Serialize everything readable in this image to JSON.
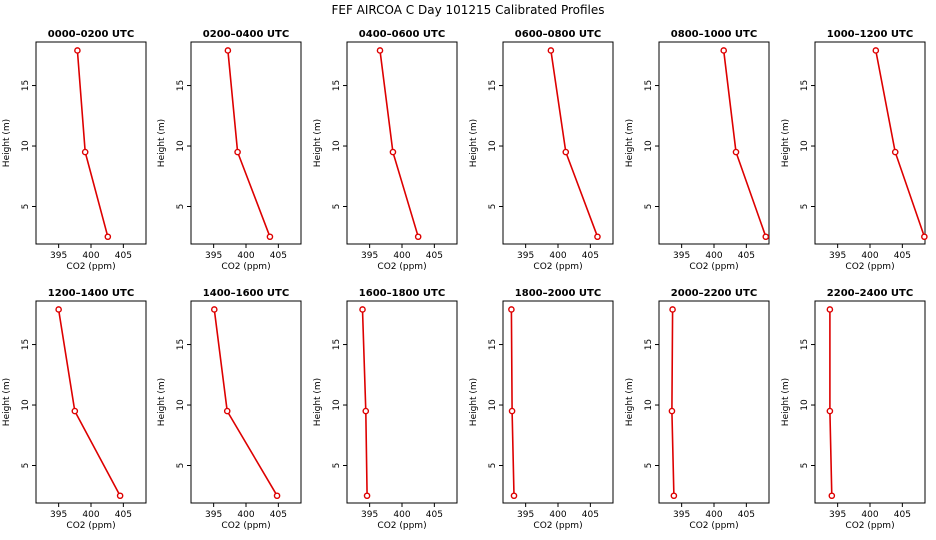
{
  "figure_title": "FEF AIRCOA C  Day 101215  Calibrated Profiles",
  "colors": {
    "profile": "#dd0000",
    "axis": "#000000",
    "background": "#ffffff"
  },
  "chart_data": [
    {
      "type": "line",
      "title": "0000–0200 UTC",
      "xlabel": "CO2 (ppm)",
      "ylabel": "Height (m)",
      "x": [
        402.6,
        399.1,
        397.9
      ],
      "y": [
        2.5,
        9.5,
        17.9
      ],
      "xlim": [
        391.5,
        408.5
      ],
      "ylim": [
        1.9,
        18.6
      ],
      "xticks": [
        395,
        400,
        405
      ],
      "xtick_labels": [
        "395",
        "400",
        "405"
      ],
      "yticks": [
        5,
        10,
        15
      ],
      "ytick_labels": [
        "5",
        "10",
        "15"
      ]
    },
    {
      "type": "line",
      "title": "0200–0400 UTC",
      "xlabel": "CO2 (ppm)",
      "ylabel": "Height (m)",
      "x": [
        403.7,
        398.7,
        397.2
      ],
      "y": [
        2.5,
        9.5,
        17.9
      ],
      "xlim": [
        391.5,
        408.5
      ],
      "ylim": [
        1.9,
        18.6
      ],
      "xticks": [
        395,
        400,
        405
      ],
      "xtick_labels": [
        "395",
        "400",
        "405"
      ],
      "yticks": [
        5,
        10,
        15
      ],
      "ytick_labels": [
        "5",
        "10",
        "15"
      ]
    },
    {
      "type": "line",
      "title": "0400–0600 UTC",
      "xlabel": "CO2 (ppm)",
      "ylabel": "Height (m)",
      "x": [
        402.5,
        398.6,
        396.6
      ],
      "y": [
        2.5,
        9.5,
        17.9
      ],
      "xlim": [
        391.5,
        408.5
      ],
      "ylim": [
        1.9,
        18.6
      ],
      "xticks": [
        395,
        400,
        405
      ],
      "xtick_labels": [
        "395",
        "400",
        "405"
      ],
      "yticks": [
        5,
        10,
        15
      ],
      "ytick_labels": [
        "5",
        "10",
        "15"
      ]
    },
    {
      "type": "line",
      "title": "0600–0800 UTC",
      "xlabel": "CO2 (ppm)",
      "ylabel": "Height (m)",
      "x": [
        406.1,
        401.2,
        398.9
      ],
      "y": [
        2.5,
        9.5,
        17.9
      ],
      "xlim": [
        391.5,
        408.5
      ],
      "ylim": [
        1.9,
        18.6
      ],
      "xticks": [
        395,
        400,
        405
      ],
      "xtick_labels": [
        "395",
        "400",
        "405"
      ],
      "yticks": [
        5,
        10,
        15
      ],
      "ytick_labels": [
        "5",
        "10",
        "15"
      ]
    },
    {
      "type": "line",
      "title": "0800–1000 UTC",
      "xlabel": "CO2 (ppm)",
      "ylabel": "Height (m)",
      "x": [
        408.0,
        403.4,
        401.5
      ],
      "y": [
        2.5,
        9.5,
        17.9
      ],
      "xlim": [
        391.5,
        408.5
      ],
      "ylim": [
        1.9,
        18.6
      ],
      "xticks": [
        395,
        400,
        405
      ],
      "xtick_labels": [
        "395",
        "400",
        "405"
      ],
      "yticks": [
        5,
        10,
        15
      ],
      "ytick_labels": [
        "5",
        "10",
        "15"
      ]
    },
    {
      "type": "line",
      "title": "1000–1200 UTC",
      "xlabel": "CO2 (ppm)",
      "ylabel": "Height (m)",
      "x": [
        408.4,
        403.9,
        400.9
      ],
      "y": [
        2.5,
        9.5,
        17.9
      ],
      "xlim": [
        391.5,
        408.5
      ],
      "ylim": [
        1.9,
        18.6
      ],
      "xticks": [
        395,
        400,
        405
      ],
      "xtick_labels": [
        "395",
        "400",
        "405"
      ],
      "yticks": [
        5,
        10,
        15
      ],
      "ytick_labels": [
        "5",
        "10",
        "15"
      ]
    },
    {
      "type": "line",
      "title": "1200–1400 UTC",
      "xlabel": "CO2 (ppm)",
      "ylabel": "Height (m)",
      "x": [
        404.5,
        397.5,
        395.0
      ],
      "y": [
        2.5,
        9.5,
        17.9
      ],
      "xlim": [
        391.5,
        408.5
      ],
      "ylim": [
        1.9,
        18.6
      ],
      "xticks": [
        395,
        400,
        405
      ],
      "xtick_labels": [
        "395",
        "400",
        "405"
      ],
      "yticks": [
        5,
        10,
        15
      ],
      "ytick_labels": [
        "5",
        "10",
        "15"
      ]
    },
    {
      "type": "line",
      "title": "1400–1600 UTC",
      "xlabel": "CO2 (ppm)",
      "ylabel": "Height (m)",
      "x": [
        404.8,
        397.1,
        395.1
      ],
      "y": [
        2.5,
        9.5,
        17.9
      ],
      "xlim": [
        391.5,
        408.5
      ],
      "ylim": [
        1.9,
        18.6
      ],
      "xticks": [
        395,
        400,
        405
      ],
      "xtick_labels": [
        "395",
        "400",
        "405"
      ],
      "yticks": [
        5,
        10,
        15
      ],
      "ytick_labels": [
        "5",
        "10",
        "15"
      ]
    },
    {
      "type": "line",
      "title": "1600–1800 UTC",
      "xlabel": "CO2 (ppm)",
      "ylabel": "Height (m)",
      "x": [
        394.6,
        394.4,
        393.9
      ],
      "y": [
        2.5,
        9.5,
        17.9
      ],
      "xlim": [
        391.5,
        408.5
      ],
      "ylim": [
        1.9,
        18.6
      ],
      "xticks": [
        395,
        400,
        405
      ],
      "xtick_labels": [
        "395",
        "400",
        "405"
      ],
      "yticks": [
        5,
        10,
        15
      ],
      "ytick_labels": [
        "5",
        "10",
        "15"
      ]
    },
    {
      "type": "line",
      "title": "1800–2000 UTC",
      "xlabel": "CO2 (ppm)",
      "ylabel": "Height (m)",
      "x": [
        393.2,
        392.9,
        392.8
      ],
      "y": [
        2.5,
        9.5,
        17.9
      ],
      "xlim": [
        391.5,
        408.5
      ],
      "ylim": [
        1.9,
        18.6
      ],
      "xticks": [
        395,
        400,
        405
      ],
      "xtick_labels": [
        "395",
        "400",
        "405"
      ],
      "yticks": [
        5,
        10,
        15
      ],
      "ytick_labels": [
        "5",
        "10",
        "15"
      ]
    },
    {
      "type": "line",
      "title": "2000–2200 UTC",
      "xlabel": "CO2 (ppm)",
      "ylabel": "Height (m)",
      "x": [
        393.8,
        393.5,
        393.6
      ],
      "y": [
        2.5,
        9.5,
        17.9
      ],
      "xlim": [
        391.5,
        408.5
      ],
      "ylim": [
        1.9,
        18.6
      ],
      "xticks": [
        395,
        400,
        405
      ],
      "xtick_labels": [
        "395",
        "400",
        "405"
      ],
      "yticks": [
        5,
        10,
        15
      ],
      "ytick_labels": [
        "5",
        "10",
        "15"
      ]
    },
    {
      "type": "line",
      "title": "2200–2400 UTC",
      "xlabel": "CO2 (ppm)",
      "ylabel": "Height (m)",
      "x": [
        394.1,
        393.8,
        393.8
      ],
      "y": [
        2.5,
        9.5,
        17.9
      ],
      "xlim": [
        391.5,
        408.5
      ],
      "ylim": [
        1.9,
        18.6
      ],
      "xticks": [
        395,
        400,
        405
      ],
      "xtick_labels": [
        "395",
        "400",
        "405"
      ],
      "yticks": [
        5,
        10,
        15
      ],
      "ytick_labels": [
        "5",
        "10",
        "15"
      ]
    }
  ]
}
